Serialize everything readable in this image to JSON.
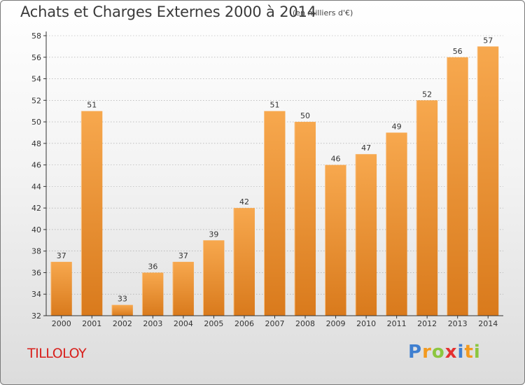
{
  "header": {
    "title": "Achats et Charges Externes 2000 à 2014",
    "unit": "(en milliers d'€)"
  },
  "footer": {
    "commune": "TILLOLOY",
    "brand": [
      "P",
      "r",
      "o",
      "x",
      "i",
      "t",
      "i"
    ],
    "brand_colors": [
      "#3f7fd0",
      "#f39a1f",
      "#8cc63f",
      "#e53030",
      "#3f7fd0",
      "#f39a1f",
      "#8cc63f"
    ]
  },
  "colors": {
    "bar_light": "#f7a84e",
    "bar_dark": "#d97a1c",
    "axis": "#333333",
    "grid": "#9e9e9e",
    "commune": "#d8201c"
  },
  "chart_data": {
    "type": "bar",
    "categories": [
      "2000",
      "2001",
      "2002",
      "2003",
      "2004",
      "2005",
      "2006",
      "2007",
      "2008",
      "2009",
      "2010",
      "2011",
      "2012",
      "2013",
      "2014"
    ],
    "values": [
      37,
      51,
      33,
      36,
      37,
      39,
      42,
      51,
      50,
      46,
      47,
      49,
      52,
      56,
      57
    ],
    "ylim": [
      32,
      58
    ],
    "yticks": [
      32,
      34,
      36,
      38,
      40,
      42,
      44,
      46,
      48,
      50,
      52,
      54,
      56,
      58
    ],
    "grid": true
  }
}
